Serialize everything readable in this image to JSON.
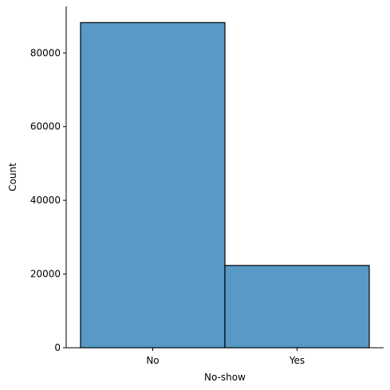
{
  "chart_data": {
    "type": "bar",
    "title": "",
    "xlabel": "No-show",
    "ylabel": "Count",
    "categories": [
      "No",
      "Yes"
    ],
    "values": [
      88208,
      22319
    ],
    "ylim": [
      0,
      92618
    ],
    "yticks": [
      0,
      20000,
      40000,
      60000,
      80000
    ],
    "grid": false,
    "legend": "none",
    "bar_color": "#5799c7",
    "edge_color": "#000000"
  }
}
